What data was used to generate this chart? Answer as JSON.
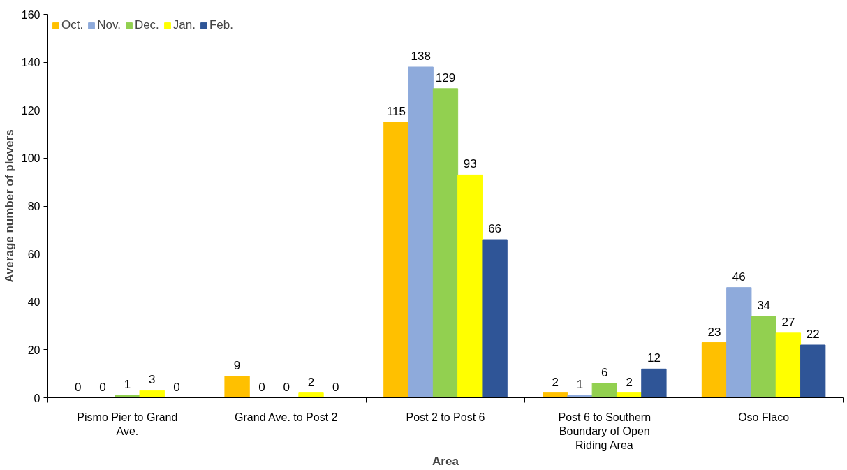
{
  "chart_data": {
    "type": "bar",
    "xlabel": "Area",
    "ylabel": "Average number of plovers",
    "categories": [
      "Pismo Pier to Grand Ave.",
      "Grand Ave. to Post 2",
      "Post 2 to Post 6",
      "Post 6 to Southern Boundary of Open Riding Area",
      "Oso Flaco"
    ],
    "series": [
      {
        "name": "Oct.",
        "color": "#ffc000",
        "values": [
          0,
          9,
          115,
          2,
          23
        ]
      },
      {
        "name": "Nov.",
        "color": "#8eaadb",
        "values": [
          0,
          0,
          138,
          1,
          46
        ]
      },
      {
        "name": "Dec.",
        "color": "#92d050",
        "values": [
          1,
          0,
          129,
          6,
          34
        ]
      },
      {
        "name": "Jan.",
        "color": "#ffff00",
        "values": [
          3,
          2,
          93,
          2,
          27
        ]
      },
      {
        "name": "Feb.",
        "color": "#2f5597",
        "values": [
          0,
          0,
          66,
          12,
          22
        ]
      }
    ],
    "ylim": [
      0,
      160
    ],
    "yticks": [
      0,
      20,
      40,
      60,
      80,
      100,
      120,
      140,
      160
    ],
    "data_labels": true,
    "legend": "top left",
    "grid": false
  }
}
